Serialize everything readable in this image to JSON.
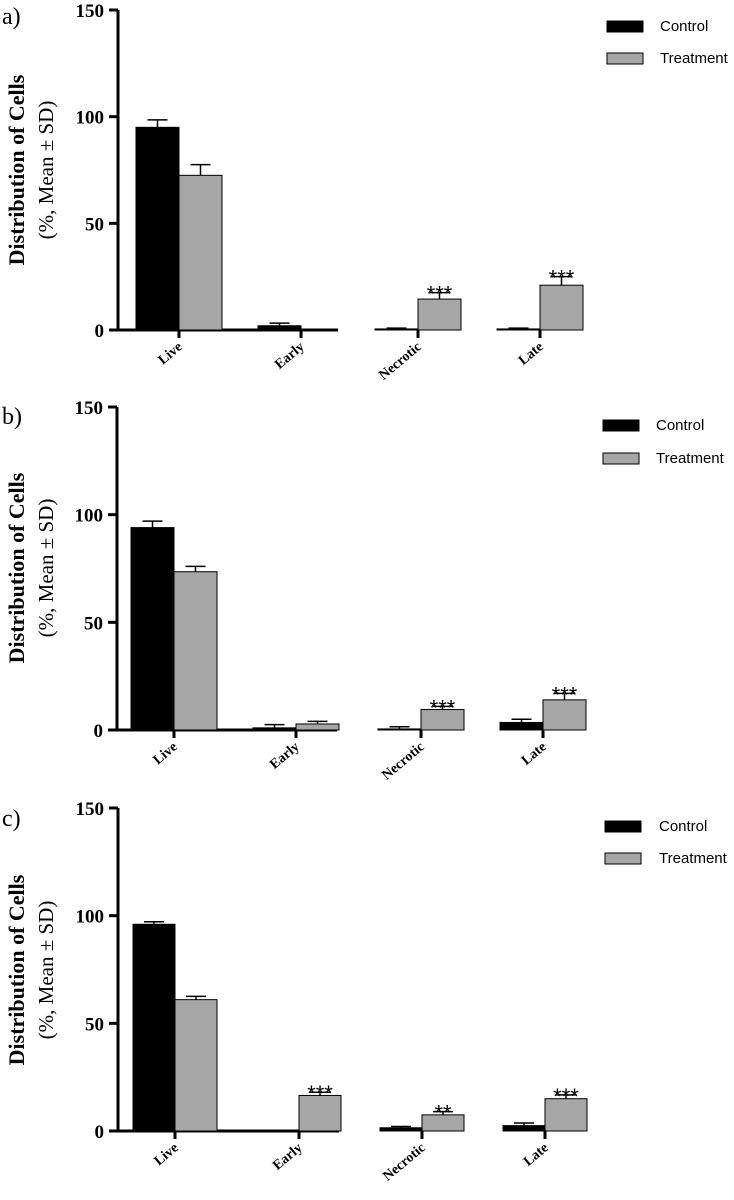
{
  "chart_data": [
    {
      "type": "bar",
      "panel": "a)",
      "ylabel_line1": "Distribution of Cells",
      "ylabel_line2": "(%, Mean ± SD)",
      "ylim": [
        0,
        150
      ],
      "yticks": [
        0,
        50,
        100,
        150
      ],
      "categories": [
        "Live",
        "Early",
        "Necrotic",
        "Late"
      ],
      "series": [
        {
          "name": "Control",
          "color": "#000000",
          "values": [
            95,
            2,
            0.5,
            0.5
          ],
          "errors": [
            3.5,
            1.2,
            0.4,
            0.4
          ]
        },
        {
          "name": "Treatment",
          "color": "#a6a6a6",
          "values": [
            72.5,
            0,
            14.5,
            21
          ],
          "errors": [
            5,
            0,
            3,
            4
          ]
        }
      ],
      "annotations": [
        {
          "category": "Necrotic",
          "series": "Treatment",
          "text": "***"
        },
        {
          "category": "Late",
          "series": "Treatment",
          "text": "***"
        }
      ],
      "legend": {
        "position": "top-right",
        "items": [
          "Control",
          "Treatment"
        ]
      }
    },
    {
      "type": "bar",
      "panel": "b)",
      "ylabel_line1": "Distribution of Cells",
      "ylabel_line2": "(%, Mean ± SD)",
      "ylim": [
        0,
        150
      ],
      "yticks": [
        0,
        50,
        100,
        150
      ],
      "categories": [
        "Live",
        "Early",
        "Necrotic",
        "Late"
      ],
      "series": [
        {
          "name": "Control",
          "color": "#000000",
          "values": [
            94,
            1,
            0.5,
            3.5
          ],
          "errors": [
            3,
            1.5,
            1,
            1.5
          ]
        },
        {
          "name": "Treatment",
          "color": "#a6a6a6",
          "values": [
            73.5,
            2.8,
            9.5,
            14
          ],
          "errors": [
            2.5,
            1.2,
            1.5,
            3
          ]
        }
      ],
      "annotations": [
        {
          "category": "Necrotic",
          "series": "Treatment",
          "text": "***"
        },
        {
          "category": "Late",
          "series": "Treatment",
          "text": "***"
        }
      ],
      "legend": {
        "position": "top-right",
        "items": [
          "Control",
          "Treatment"
        ]
      }
    },
    {
      "type": "bar",
      "panel": "c)",
      "ylabel_line1": "Distribution of Cells",
      "ylabel_line2": "(%, Mean ± SD)",
      "ylim": [
        0,
        150
      ],
      "yticks": [
        0,
        50,
        100,
        150
      ],
      "categories": [
        "Live",
        "Early",
        "Necrotic",
        "Late"
      ],
      "series": [
        {
          "name": "Control",
          "color": "#000000",
          "values": [
            96,
            0,
            1.5,
            2.5
          ],
          "errors": [
            1.2,
            0,
            0.6,
            1.2
          ]
        },
        {
          "name": "Treatment",
          "color": "#a6a6a6",
          "values": [
            61,
            16.5,
            7.5,
            15
          ],
          "errors": [
            1.5,
            1.5,
            1.5,
            1.8
          ]
        }
      ],
      "annotations": [
        {
          "category": "Early",
          "series": "Treatment",
          "text": "***"
        },
        {
          "category": "Necrotic",
          "series": "Treatment",
          "text": "**"
        },
        {
          "category": "Late",
          "series": "Treatment",
          "text": "***"
        }
      ],
      "legend": {
        "position": "top-right",
        "items": [
          "Control",
          "Treatment"
        ]
      }
    }
  ]
}
